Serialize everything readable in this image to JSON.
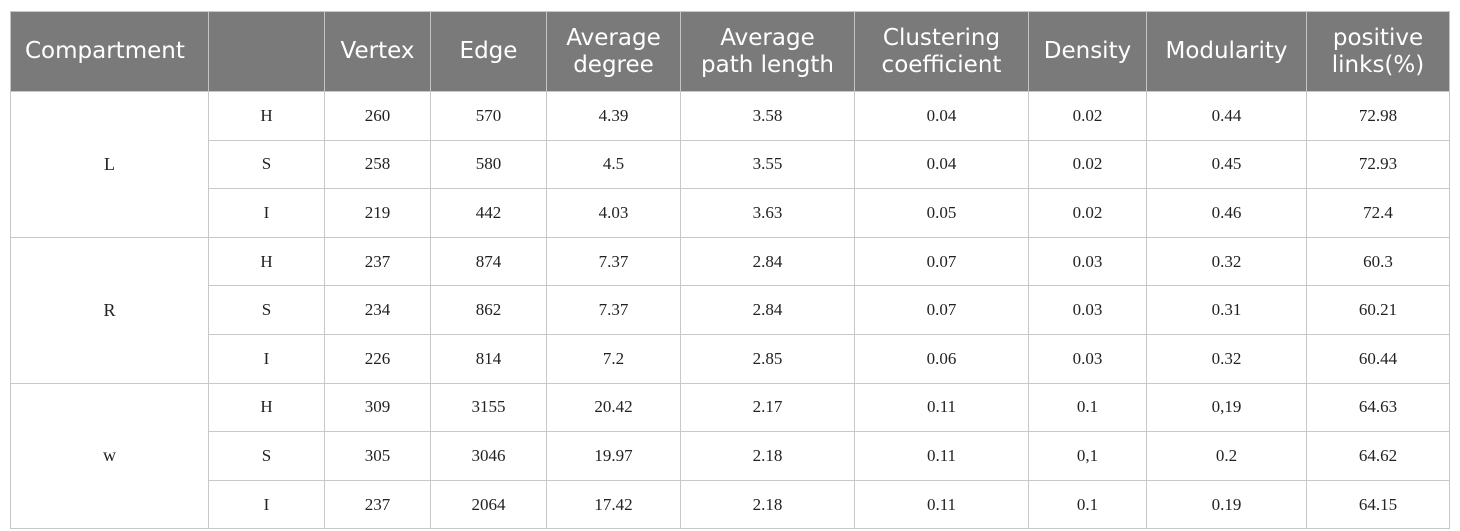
{
  "headers": [
    "Compartment",
    "",
    "Vertex",
    "Edge",
    "Average degree",
    "Average path length",
    "Clustering coefficient",
    "Density",
    "Modularity",
    "positive links(%)"
  ],
  "groups": [
    {
      "compartment": "L",
      "rows": [
        {
          "label": "H",
          "cells": [
            "260",
            "570",
            "4.39",
            "3.58",
            "0.04",
            "0.02",
            "0.44",
            "72.98"
          ]
        },
        {
          "label": "S",
          "cells": [
            "258",
            "580",
            "4.5",
            "3.55",
            "0.04",
            "0.02",
            "0.45",
            "72.93"
          ]
        },
        {
          "label": "I",
          "cells": [
            "219",
            "442",
            "4.03",
            "3.63",
            "0.05",
            "0.02",
            "0.46",
            "72.4"
          ]
        }
      ]
    },
    {
      "compartment": "R",
      "rows": [
        {
          "label": "H",
          "cells": [
            "237",
            "874",
            "7.37",
            "2.84",
            "0.07",
            "0.03",
            "0.32",
            "60.3"
          ]
        },
        {
          "label": "S",
          "cells": [
            "234",
            "862",
            "7.37",
            "2.84",
            "0.07",
            "0.03",
            "0.31",
            "60.21"
          ]
        },
        {
          "label": "I",
          "cells": [
            "226",
            "814",
            "7.2",
            "2.85",
            "0.06",
            "0.03",
            "0.32",
            "60.44"
          ]
        }
      ]
    },
    {
      "compartment": "w",
      "rows": [
        {
          "label": "H",
          "cells": [
            "309",
            "3155",
            "20.42",
            "2.17",
            "0.11",
            "0.1",
            "0,19",
            "64.63"
          ]
        },
        {
          "label": "S",
          "cells": [
            "305",
            "3046",
            "19.97",
            "2.18",
            "0.11",
            "0,1",
            "0.2",
            "64.62"
          ]
        },
        {
          "label": "I",
          "cells": [
            "237",
            "2064",
            "17.42",
            "2.18",
            "0.11",
            "0.1",
            "0.19",
            "64.15"
          ]
        }
      ]
    }
  ]
}
